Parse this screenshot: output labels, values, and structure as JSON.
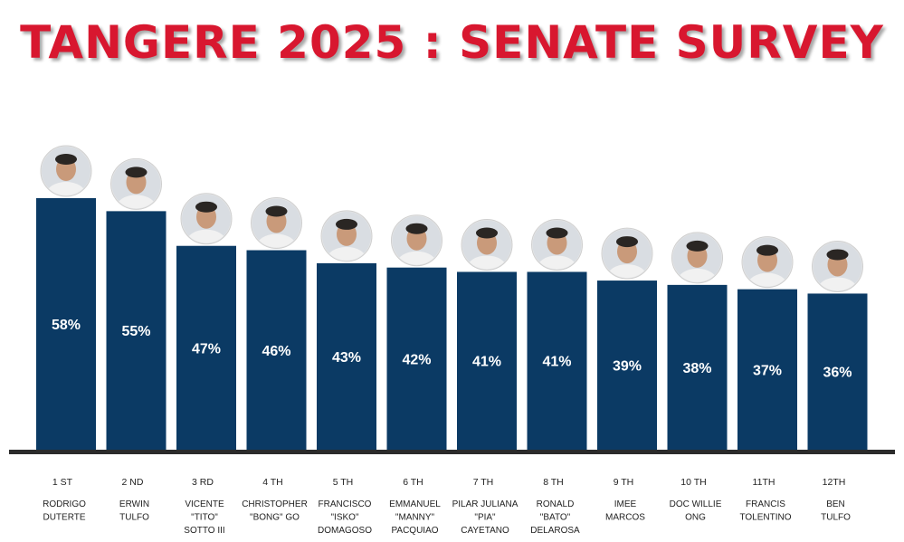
{
  "title": "TANGERE 2025 : SENATE SURVEY",
  "colors": {
    "title": "#d8172f",
    "bar": "#0b3a64",
    "baseline": "#2b2b2b",
    "bar_text": "#ffffff"
  },
  "chart_data": {
    "type": "bar",
    "title": "TANGERE 2025 : SENATE SURVEY",
    "categories": [
      "RODRIGO DUTERTE",
      "ERWIN TULFO",
      "VICENTE \"TITO\" SOTTO III",
      "CHRISTOPHER \"BONG\" GO",
      "FRANCISCO \"ISKO\" DOMAGOSO",
      "EMMANUEL \"MANNY\" PACQUIAO",
      "PILAR JULIANA \"PIA\" CAYETANO",
      "RONALD \"BATO\" DELAROSA",
      "IMEE MARCOS",
      "DOC WILLIE ONG",
      "FRANCIS TOLENTINO",
      "BEN TULFO"
    ],
    "values": [
      58,
      55,
      47,
      46,
      43,
      42,
      41,
      41,
      39,
      38,
      37,
      36
    ],
    "grid": false,
    "legend": "none",
    "entries": [
      {
        "rank": "1 ST",
        "name_lines": [
          "RODRIGO",
          "DUTERTE"
        ],
        "value": 58,
        "value_label": "58%"
      },
      {
        "rank": "2 ND",
        "name_lines": [
          "ERWIN",
          "TULFO"
        ],
        "value": 55,
        "value_label": "55%"
      },
      {
        "rank": "3 RD",
        "name_lines": [
          "VICENTE",
          "\"TITO\"",
          "SOTTO III"
        ],
        "value": 47,
        "value_label": "47%"
      },
      {
        "rank": "4 TH",
        "name_lines": [
          "CHRISTOPHER",
          "\"BONG\" GO"
        ],
        "value": 46,
        "value_label": "46%"
      },
      {
        "rank": "5 TH",
        "name_lines": [
          "FRANCISCO",
          "\"ISKO\"",
          "DOMAGOSO"
        ],
        "value": 43,
        "value_label": "43%"
      },
      {
        "rank": "6 TH",
        "name_lines": [
          "EMMANUEL",
          "\"MANNY\"",
          "PACQUIAO"
        ],
        "value": 42,
        "value_label": "42%"
      },
      {
        "rank": "7 TH",
        "name_lines": [
          "PILAR JULIANA",
          "\"PIA\"",
          "CAYETANO"
        ],
        "value": 41,
        "value_label": "41%"
      },
      {
        "rank": "8 TH",
        "name_lines": [
          "RONALD",
          "\"BATO\"",
          "DELAROSA"
        ],
        "value": 41,
        "value_label": "41%"
      },
      {
        "rank": "9 TH",
        "name_lines": [
          "IMEE",
          "MARCOS"
        ],
        "value": 39,
        "value_label": "39%"
      },
      {
        "rank": "10 TH",
        "name_lines": [
          "DOC WILLIE",
          "ONG"
        ],
        "value": 38,
        "value_label": "38%"
      },
      {
        "rank": "11TH",
        "name_lines": [
          "FRANCIS",
          "TOLENTINO"
        ],
        "value": 37,
        "value_label": "37%"
      },
      {
        "rank": "12TH",
        "name_lines": [
          "BEN",
          "TULFO"
        ],
        "value": 36,
        "value_label": "36%"
      }
    ]
  }
}
